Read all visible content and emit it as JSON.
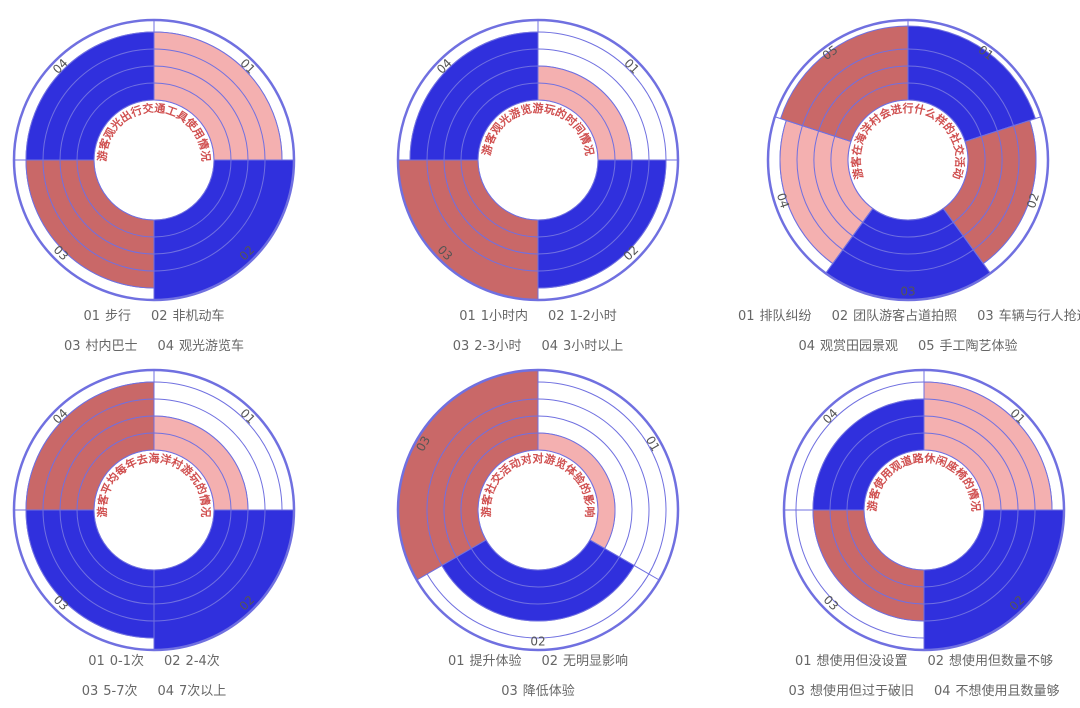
{
  "colors": {
    "blue": "#3030dd",
    "pink": "#f4b0b0",
    "red": "#c96868",
    "ring": "#7070e0",
    "title": "#d05050"
  },
  "chart_data": [
    {
      "type": "polar-area",
      "title": "游客观光出行交通工具使用情况",
      "rings": 4,
      "categories": [
        {
          "id": "01",
          "label": "步行",
          "value": 4,
          "color": "pink"
        },
        {
          "id": "02",
          "label": "非机动车",
          "value": 5,
          "color": "blue"
        },
        {
          "id": "03",
          "label": "村内巴士",
          "value": 4,
          "color": "red"
        },
        {
          "id": "04",
          "label": "观光游览车",
          "value": 4,
          "color": "blue"
        }
      ],
      "legend_rows": [
        [
          "01",
          "02"
        ],
        [
          "03",
          "04"
        ]
      ]
    },
    {
      "type": "polar-area",
      "title": "游客观光游览游玩的时间情况",
      "rings": 4,
      "categories": [
        {
          "id": "01",
          "label": "1小时内",
          "value": 2,
          "color": "pink"
        },
        {
          "id": "02",
          "label": "1-2小时",
          "value": 4,
          "color": "blue"
        },
        {
          "id": "03",
          "label": "2-3小时",
          "value": 5,
          "color": "red"
        },
        {
          "id": "04",
          "label": "3小时以上",
          "value": 4,
          "color": "blue"
        }
      ],
      "legend_rows": [
        [
          "01",
          "02"
        ],
        [
          "03",
          "04"
        ]
      ]
    },
    {
      "type": "polar-area",
      "title": "游客在海洋村会进行什么样的社交活动",
      "rings": 4,
      "categories": [
        {
          "id": "01",
          "label": "排队纠纷",
          "value": 5,
          "color": "blue"
        },
        {
          "id": "02",
          "label": "团队游客占道拍照",
          "value": 4,
          "color": "red"
        },
        {
          "id": "03",
          "label": "车辆与行人抢道",
          "value": 6,
          "color": "blue"
        },
        {
          "id": "04",
          "label": "观赏田园景观",
          "value": 4,
          "color": "pink"
        },
        {
          "id": "05",
          "label": "手工陶艺体验",
          "value": 5,
          "color": "red"
        }
      ],
      "legend_rows": [
        [
          "01",
          "02",
          "03"
        ],
        [
          "04",
          "05"
        ]
      ]
    },
    {
      "type": "polar-area",
      "title": "游客平均每年去海洋村游玩的情况",
      "rings": 4,
      "categories": [
        {
          "id": "01",
          "label": "0-1次",
          "value": 2,
          "color": "pink"
        },
        {
          "id": "02",
          "label": "2-4次",
          "value": 6,
          "color": "blue"
        },
        {
          "id": "03",
          "label": "5-7次",
          "value": 4,
          "color": "blue"
        },
        {
          "id": "04",
          "label": "7次以上",
          "value": 4,
          "color": "red"
        }
      ],
      "legend_rows": [
        [
          "01",
          "02"
        ],
        [
          "03",
          "04"
        ]
      ]
    },
    {
      "type": "polar-area",
      "title": "游客社交活动对对游览体验的影响",
      "rings": 4,
      "categories": [
        {
          "id": "01",
          "label": "提升体验",
          "value": 1,
          "color": "pink"
        },
        {
          "id": "02",
          "label": "无明显影响",
          "value": 3,
          "color": "blue"
        },
        {
          "id": "03",
          "label": "降低体验",
          "value": 5,
          "color": "red"
        }
      ],
      "legend_rows": [
        [
          "01",
          "02"
        ],
        [
          "03"
        ]
      ]
    },
    {
      "type": "polar-area",
      "title": "游客使用观道路休闲座椅的情况",
      "rings": 4,
      "categories": [
        {
          "id": "01",
          "label": "想使用但没设置",
          "value": 4,
          "color": "pink"
        },
        {
          "id": "02",
          "label": "想使用但数量不够",
          "value": 5,
          "color": "blue"
        },
        {
          "id": "03",
          "label": "想使用但过于破旧",
          "value": 3,
          "color": "red"
        },
        {
          "id": "04",
          "label": "不想使用且数量够",
          "value": 3,
          "color": "blue"
        }
      ],
      "legend_rows": [
        [
          "01",
          "02"
        ],
        [
          "03",
          "04"
        ]
      ]
    }
  ]
}
